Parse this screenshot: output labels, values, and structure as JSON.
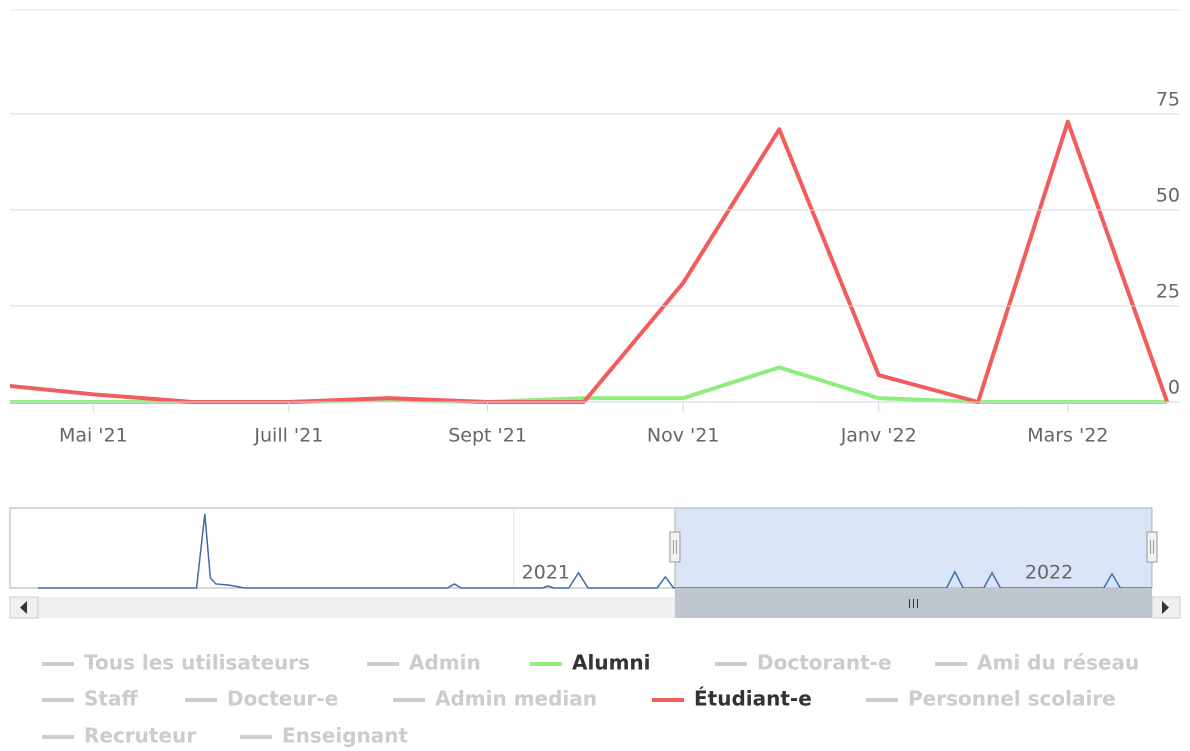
{
  "chart_data": {
    "type": "line",
    "x": [
      "2021-04",
      "2021-05",
      "2021-06",
      "2021-07",
      "2021-08",
      "2021-09",
      "2021-10",
      "2021-11",
      "2021-12",
      "2022-01",
      "2022-02",
      "2022-03",
      "2022-04"
    ],
    "xlim": [
      "2021-04-05",
      "2022-04-05"
    ],
    "xticks": [
      {
        "value": "2021-05-01",
        "label": "Mai '21"
      },
      {
        "value": "2021-07-01",
        "label": "Juill '21"
      },
      {
        "value": "2021-09-01",
        "label": "Sept '21"
      },
      {
        "value": "2021-11-01",
        "label": "Nov '21"
      },
      {
        "value": "2022-01-01",
        "label": "Janv '22"
      },
      {
        "value": "2022-03-01",
        "label": "Mars '22"
      }
    ],
    "ylim": [
      0,
      100
    ],
    "yticks": [
      0,
      25,
      50,
      75
    ],
    "grid": true,
    "legend_hidden_color": "#cccccc",
    "series": [
      {
        "name": "Tous les utilisateurs",
        "visible": false
      },
      {
        "name": "Admin",
        "visible": false
      },
      {
        "name": "Alumni",
        "visible": true,
        "color": "#90ed7d",
        "values": [
          0,
          0,
          0,
          0,
          0.5,
          0,
          1,
          1,
          9,
          1,
          0,
          0,
          0
        ]
      },
      {
        "name": "Doctorant-e",
        "visible": false
      },
      {
        "name": "Ami du réseau",
        "visible": false
      },
      {
        "name": "Staff",
        "visible": false
      },
      {
        "name": "Docteur-e",
        "visible": false
      },
      {
        "name": "Admin median",
        "visible": false
      },
      {
        "name": "Étudiant-e",
        "visible": true,
        "color": "#f15c5c",
        "values": [
          4.5,
          2,
          0,
          0,
          1,
          0,
          0,
          31,
          71,
          7,
          0,
          73,
          0
        ]
      },
      {
        "name": "Personnel scolaire",
        "visible": false
      },
      {
        "name": "Recruteur",
        "visible": false
      },
      {
        "name": "Enseignant",
        "visible": false
      }
    ],
    "navigator": {
      "color": "#3d6ea8",
      "xlim": [
        "2020-01-22",
        "2022-04-09"
      ],
      "xticks": [
        {
          "value": "2021-01-01",
          "label": "2021"
        },
        {
          "value": "2022-01-01",
          "label": "2022"
        }
      ],
      "selection": [
        "2021-04-28",
        "2022-04-09"
      ],
      "x": [
        "2020-01-22",
        "2020-05-16",
        "2020-05-22",
        "2020-05-26",
        "2020-05-30",
        "2020-06-08",
        "2020-06-20",
        "2020-11-14",
        "2020-11-19",
        "2020-11-24",
        "2021-01-22",
        "2021-01-26",
        "2021-01-30",
        "2021-02-10",
        "2021-02-17",
        "2021-02-24",
        "2021-04-15",
        "2021-04-21",
        "2021-04-27",
        "2021-11-11",
        "2021-11-17",
        "2021-11-23",
        "2021-12-08",
        "2021-12-14",
        "2021-12-20",
        "2022-03-05",
        "2022-03-11",
        "2022-03-17",
        "2022-04-09"
      ],
      "values": [
        0,
        0,
        73,
        10,
        4,
        3,
        0,
        0,
        4,
        0,
        0,
        2,
        0,
        0,
        15,
        0,
        0,
        11,
        0,
        0,
        16,
        0,
        0,
        15,
        0,
        0,
        14,
        0,
        0
      ]
    }
  }
}
